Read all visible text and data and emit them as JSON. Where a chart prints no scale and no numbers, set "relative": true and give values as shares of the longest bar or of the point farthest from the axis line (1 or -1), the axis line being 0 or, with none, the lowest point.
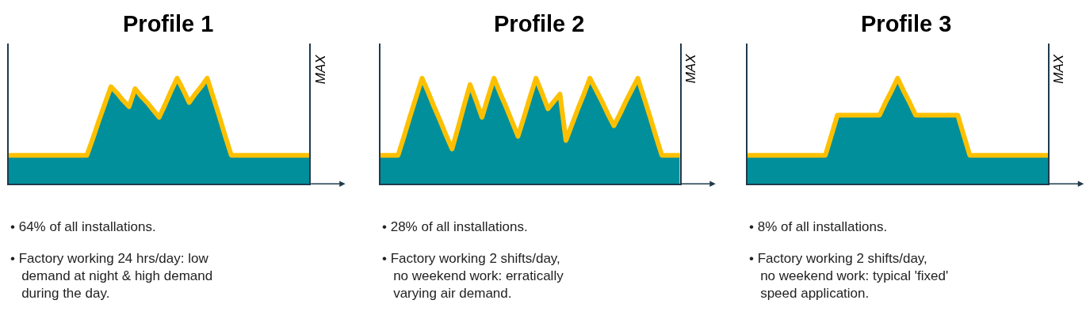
{
  "chart_data": [
    {
      "type": "area",
      "title": "Profile 1",
      "relative": true,
      "y2label": "MAX",
      "categories": [
        null,
        null,
        null,
        null,
        null,
        null,
        null,
        null,
        null,
        null,
        null,
        null,
        null,
        null,
        null,
        null,
        null,
        null,
        null,
        null,
        null,
        null,
        null,
        null,
        null,
        null,
        null,
        null,
        null,
        null,
        null,
        null,
        null,
        null,
        null,
        null,
        null,
        null,
        null,
        null,
        null,
        null,
        null,
        null,
        null,
        null,
        null,
        null,
        null,
        null,
        null
      ],
      "series": [
        {
          "color": "#008f9b",
          "values": [
            0.27,
            0.27,
            0.27,
            0.27,
            0.27,
            0.27,
            0.27,
            0.27,
            0.27,
            0.27,
            0.27,
            0.27,
            0.27,
            0.27,
            0.43,
            0.6,
            0.76,
            0.92,
            0.86,
            0.79,
            0.73,
            0.9,
            0.83,
            0.77,
            0.7,
            0.63,
            0.75,
            0.88,
            1.0,
            0.89,
            0.77,
            0.85,
            0.92,
            1.0,
            0.82,
            0.64,
            0.45,
            0.27,
            0.27,
            0.27,
            0.27,
            0.27,
            0.27,
            0.27,
            0.27,
            0.27,
            0.27,
            0.27,
            0.27,
            0.27,
            0.27
          ]
        },
        {
          "type": "line",
          "color": "#fdc000",
          "values": [
            0.27,
            0.27,
            0.27,
            0.27,
            0.27,
            0.27,
            0.27,
            0.27,
            0.27,
            0.27,
            0.27,
            0.27,
            0.27,
            0.27,
            0.43,
            0.6,
            0.76,
            0.92,
            0.86,
            0.79,
            0.73,
            0.9,
            0.83,
            0.77,
            0.7,
            0.63,
            0.75,
            0.88,
            1.0,
            0.89,
            0.77,
            0.85,
            0.92,
            1.0,
            0.82,
            0.64,
            0.45,
            0.27,
            0.27,
            0.27,
            0.27,
            0.27,
            0.27,
            0.27,
            0.27,
            0.27,
            0.27,
            0.27,
            0.27,
            0.27,
            0.27
          ]
        }
      ],
      "annotations": [
        "• 64% of all installations.",
        "• Factory working 24 hrs/day: low\ndemand at night & high demand\nduring the day."
      ]
    },
    {
      "type": "area",
      "title": "Profile 2",
      "relative": true,
      "y2label": "MAX",
      "categories": [
        null,
        null,
        null,
        null,
        null,
        null,
        null,
        null,
        null,
        null,
        null,
        null,
        null,
        null,
        null,
        null,
        null,
        null,
        null,
        null,
        null,
        null,
        null,
        null,
        null,
        null,
        null,
        null,
        null,
        null,
        null,
        null,
        null,
        null,
        null,
        null,
        null,
        null,
        null,
        null,
        null,
        null,
        null,
        null,
        null,
        null,
        null,
        null,
        null,
        null,
        null
      ],
      "series": [
        {
          "color": "#008f9b",
          "values": [
            0.27,
            0.27,
            0.27,
            0.27,
            0.45,
            0.64,
            0.82,
            1.0,
            0.87,
            0.73,
            0.6,
            0.46,
            0.33,
            0.53,
            0.74,
            0.94,
            0.79,
            0.63,
            0.82,
            1.0,
            0.86,
            0.73,
            0.59,
            0.45,
            0.63,
            0.82,
            1.0,
            0.86,
            0.71,
            0.78,
            0.85,
            0.41,
            0.56,
            0.71,
            0.85,
            1.0,
            0.89,
            0.78,
            0.66,
            0.55,
            0.66,
            0.78,
            0.89,
            1.0,
            0.82,
            0.64,
            0.45,
            0.27,
            0.27,
            0.27,
            0.27
          ]
        },
        {
          "type": "line",
          "color": "#fdc000",
          "values": [
            0.27,
            0.27,
            0.27,
            0.27,
            0.45,
            0.64,
            0.82,
            1.0,
            0.87,
            0.73,
            0.6,
            0.46,
            0.33,
            0.53,
            0.74,
            0.94,
            0.79,
            0.63,
            0.82,
            1.0,
            0.86,
            0.73,
            0.59,
            0.45,
            0.63,
            0.82,
            1.0,
            0.86,
            0.71,
            0.78,
            0.85,
            0.41,
            0.56,
            0.71,
            0.85,
            1.0,
            0.89,
            0.78,
            0.66,
            0.55,
            0.66,
            0.78,
            0.89,
            1.0,
            0.82,
            0.64,
            0.45,
            0.27,
            0.27,
            0.27,
            0.27
          ]
        }
      ],
      "annotations": [
        "• 28% of all installations.",
        "• Factory working 2 shifts/day,\nno weekend work: erratically\nvarying air demand."
      ]
    },
    {
      "type": "area",
      "title": "Profile 3",
      "relative": true,
      "y2label": "MAX",
      "categories": [
        null,
        null,
        null,
        null,
        null,
        null,
        null,
        null,
        null,
        null,
        null,
        null,
        null,
        null,
        null,
        null,
        null,
        null,
        null,
        null,
        null,
        null,
        null,
        null,
        null,
        null,
        null,
        null,
        null,
        null,
        null,
        null,
        null,
        null,
        null,
        null,
        null,
        null,
        null,
        null,
        null,
        null,
        null,
        null,
        null,
        null,
        null,
        null,
        null,
        null,
        null
      ],
      "series": [
        {
          "color": "#008f9b",
          "values": [
            0.27,
            0.27,
            0.27,
            0.27,
            0.27,
            0.27,
            0.27,
            0.27,
            0.27,
            0.27,
            0.27,
            0.27,
            0.27,
            0.27,
            0.46,
            0.65,
            0.65,
            0.65,
            0.65,
            0.65,
            0.65,
            0.65,
            0.65,
            0.77,
            0.88,
            1.0,
            0.88,
            0.77,
            0.65,
            0.65,
            0.65,
            0.65,
            0.65,
            0.65,
            0.65,
            0.65,
            0.46,
            0.27,
            0.27,
            0.27,
            0.27,
            0.27,
            0.27,
            0.27,
            0.27,
            0.27,
            0.27,
            0.27,
            0.27,
            0.27,
            0.27
          ]
        },
        {
          "type": "line",
          "color": "#fdc000",
          "values": [
            0.27,
            0.27,
            0.27,
            0.27,
            0.27,
            0.27,
            0.27,
            0.27,
            0.27,
            0.27,
            0.27,
            0.27,
            0.27,
            0.27,
            0.46,
            0.65,
            0.65,
            0.65,
            0.65,
            0.65,
            0.65,
            0.65,
            0.65,
            0.77,
            0.88,
            1.0,
            0.88,
            0.77,
            0.65,
            0.65,
            0.65,
            0.65,
            0.65,
            0.65,
            0.65,
            0.65,
            0.46,
            0.27,
            0.27,
            0.27,
            0.27,
            0.27,
            0.27,
            0.27,
            0.27,
            0.27,
            0.27,
            0.27,
            0.27,
            0.27,
            0.27
          ]
        }
      ],
      "annotations": [
        "• 8% of all installations.",
        "• Factory working 2 shifts/day,\nno weekend work: typical 'fixed'\nspeed application."
      ]
    }
  ]
}
